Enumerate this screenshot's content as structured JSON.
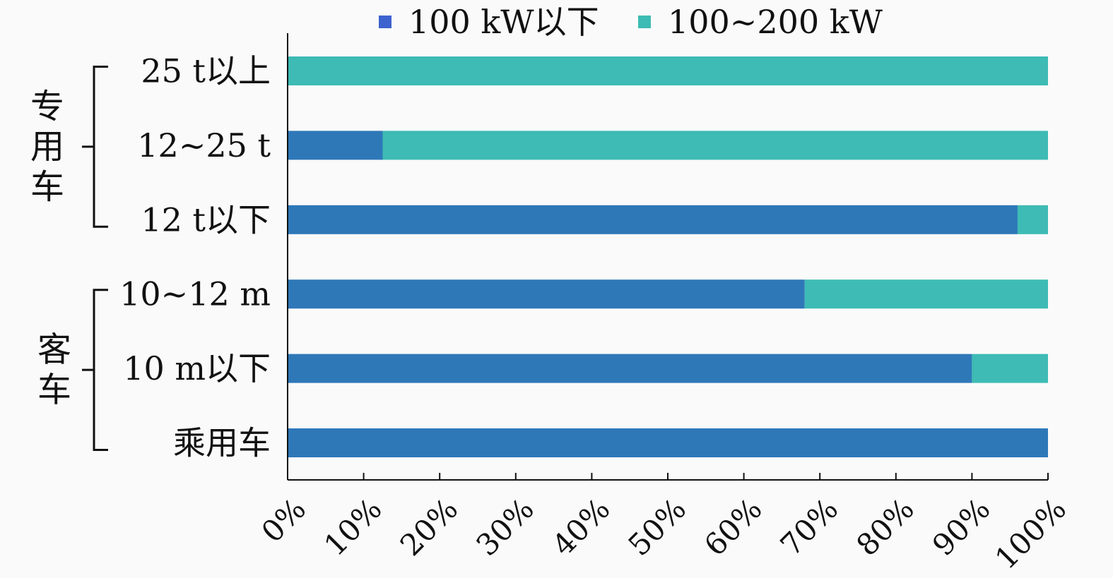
{
  "chart_data": {
    "type": "bar",
    "orientation": "horizontal",
    "stacked": true,
    "categories": [
      "25 t以上",
      "12~25 t",
      "12 t以下",
      "10~12 m",
      "10 m以下",
      "乘用车"
    ],
    "series": [
      {
        "name": "100 kW以下",
        "color": "#2e78b8",
        "values": [
          0,
          12.5,
          96,
          68,
          90,
          100
        ]
      },
      {
        "name": "100~200 kW",
        "color": "#3dbbb4",
        "values": [
          100,
          87.5,
          4,
          32,
          10,
          0
        ]
      }
    ],
    "legend_colors": [
      "#3d63cf",
      "#3dbbb4"
    ],
    "xlim": [
      0,
      100
    ],
    "x_ticks": [
      0,
      10,
      20,
      30,
      40,
      50,
      60,
      70,
      80,
      90,
      100
    ],
    "x_tick_labels": [
      "0%",
      "10%",
      "20%",
      "30%",
      "40%",
      "50%",
      "60%",
      "70%",
      "80%",
      "90%",
      "100%"
    ],
    "groups": [
      {
        "label_chars": [
          "专",
          "用",
          "车"
        ],
        "categories": [
          "25 t以上",
          "12~25 t",
          "12 t以下"
        ]
      },
      {
        "label_chars": [
          "客",
          "车"
        ],
        "categories": [
          "10~12 m",
          "10 m以下",
          "乘用车"
        ]
      }
    ],
    "legend_position": "top",
    "grid": false
  }
}
